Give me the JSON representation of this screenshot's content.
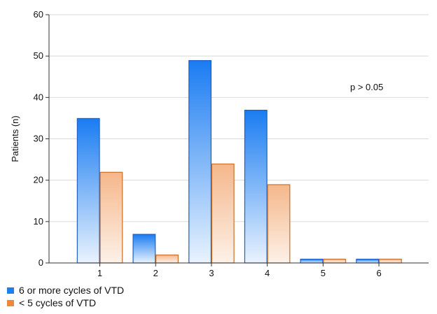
{
  "chart_data": {
    "type": "bar",
    "categories": [
      "1",
      "2",
      "3",
      "4",
      "5",
      "6"
    ],
    "series": [
      {
        "name": "6 or more cycles of VTD",
        "values": [
          35,
          7,
          49,
          37,
          1,
          1
        ],
        "color": "#1f7ef0",
        "edge": "#1e5fc9"
      },
      {
        "name": "< 5 cycles of VTD",
        "values": [
          22,
          2,
          24,
          19,
          1,
          1
        ],
        "color": "#f0883a",
        "edge": "#c8702c"
      }
    ],
    "title": "",
    "xlabel": "",
    "ylabel": "Patients (n)",
    "ylim": [
      0,
      60
    ],
    "yticks": [
      0,
      10,
      20,
      30,
      40,
      50,
      60
    ],
    "grid": true,
    "legend_position": "bottom-left",
    "annotation": "p > 0.05"
  }
}
